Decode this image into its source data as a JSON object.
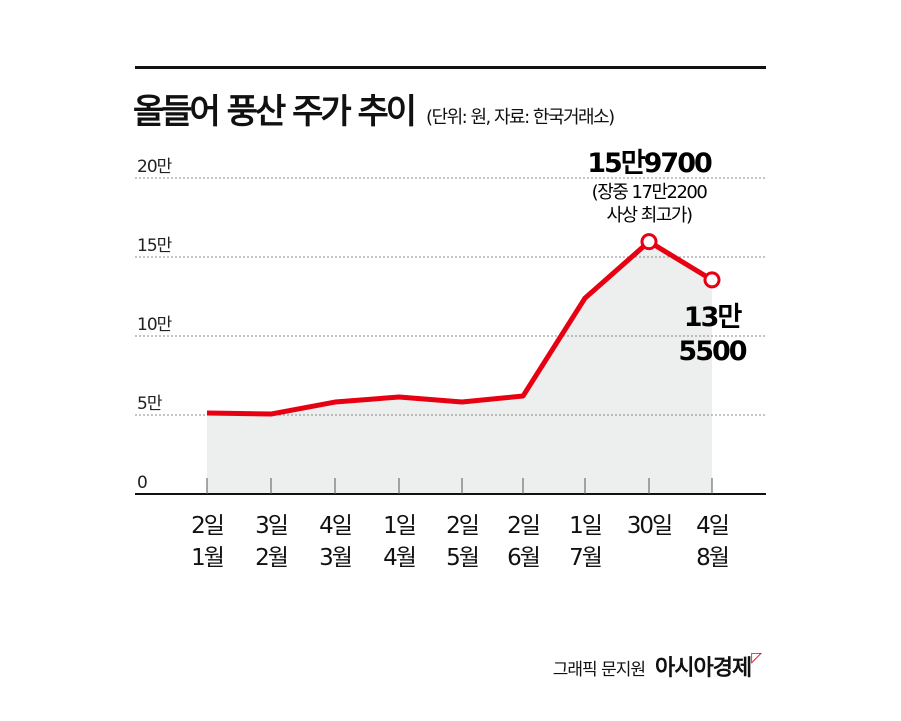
{
  "chart_data": {
    "type": "line",
    "title": "올들어 풍산 주가 추이",
    "subtitle": "(단위: 원, 자료: 한국거래소)",
    "ylim": [
      0,
      200000
    ],
    "yticks": [
      0,
      50000,
      100000,
      150000,
      200000
    ],
    "ytick_labels": [
      "0",
      "5만",
      "10만",
      "15만",
      "20만"
    ],
    "categories": [
      [
        "2일",
        "1월"
      ],
      [
        "3일",
        "2월"
      ],
      [
        "4일",
        "3월"
      ],
      [
        "1일",
        "4월"
      ],
      [
        "2일",
        "5월"
      ],
      [
        "2일",
        "6월"
      ],
      [
        "1일",
        "7월"
      ],
      [
        "30일",
        ""
      ],
      [
        "4일",
        "8월"
      ]
    ],
    "values": [
      51300,
      50600,
      58200,
      61400,
      58200,
      62000,
      124000,
      159700,
      135500
    ],
    "grid": true,
    "line_color": "#e60012",
    "fill_color": "#edeeee",
    "annotations": [
      {
        "index": 7,
        "lines": [
          "15만9700",
          "(장중 17만2200",
          "사상 최고가)"
        ]
      },
      {
        "index": 8,
        "lines": [
          "13만",
          "5500"
        ]
      }
    ]
  },
  "credit": "그래픽 문지원",
  "logo": "아시아경제"
}
